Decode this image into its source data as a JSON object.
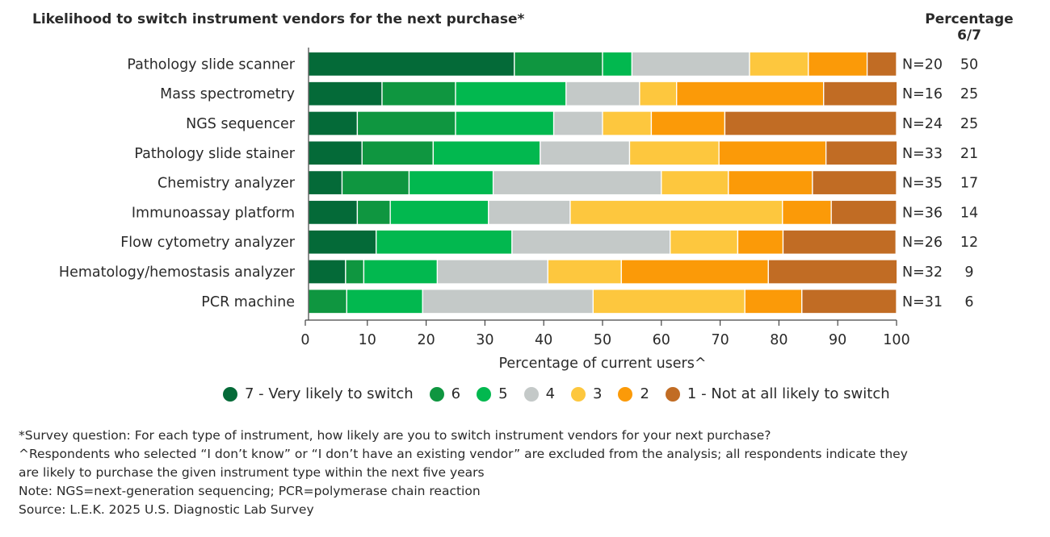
{
  "title": "Likelihood to switch instrument vendors for the next purchase*",
  "pct_header_line1": "Percentage",
  "pct_header_line2": "6/7",
  "chart_data": {
    "type": "bar",
    "orientation": "horizontal",
    "stacked": true,
    "categories": [
      "Pathology slide scanner",
      "Mass spectrometry",
      "NGS sequencer",
      "Pathology slide stainer",
      "Chemistry analyzer",
      "Immunoassay platform",
      "Flow cytometry analyzer",
      "Hematology/hemostasis analyzer",
      "PCR machine"
    ],
    "series": [
      {
        "name": "7 - Very likely to switch",
        "color": "#046a38",
        "values": [
          35,
          12.5,
          8.3,
          9.1,
          5.7,
          8.3,
          11.5,
          6.3,
          0
        ]
      },
      {
        "name": "6",
        "color": "#0f9640",
        "values": [
          15,
          12.5,
          16.7,
          12.1,
          11.4,
          5.6,
          0,
          3.1,
          6.5
        ]
      },
      {
        "name": "5",
        "color": "#02b84f",
        "values": [
          5,
          18.8,
          16.7,
          18.2,
          14.3,
          16.7,
          23.1,
          12.5,
          12.9
        ]
      },
      {
        "name": "4",
        "color": "#c4c9c8",
        "values": [
          20,
          12.5,
          8.3,
          15.2,
          28.6,
          13.9,
          26.9,
          18.8,
          29
        ]
      },
      {
        "name": "3",
        "color": "#fdc73e",
        "values": [
          10,
          6.3,
          8.3,
          15.2,
          11.4,
          36.1,
          11.5,
          12.5,
          25.8
        ]
      },
      {
        "name": "2",
        "color": "#fb9a08",
        "values": [
          10,
          25,
          12.5,
          18.2,
          14.3,
          8.3,
          7.7,
          25,
          9.7
        ]
      },
      {
        "name": "1 - Not at all likely to switch",
        "color": "#c16c24",
        "values": [
          5,
          12.5,
          29.2,
          12.1,
          14.3,
          11.1,
          19.2,
          21.9,
          16.1
        ]
      }
    ],
    "n_labels": [
      "N=20",
      "N=16",
      "N=24",
      "N=33",
      "N=35",
      "N=36",
      "N=26",
      "N=32",
      "N=31"
    ],
    "percentage_6_7": [
      "50",
      "25",
      "25",
      "21",
      "17",
      "14",
      "12",
      "9",
      "6"
    ],
    "xlabel": "Percentage of current users^",
    "xlim": [
      0,
      100
    ],
    "xticks": [
      "0",
      "10",
      "20",
      "30",
      "40",
      "50",
      "60",
      "70",
      "80",
      "90",
      "100"
    ],
    "legend_position": "bottom"
  },
  "legend": [
    {
      "label": "7 - Very likely to switch",
      "color": "#046a38"
    },
    {
      "label": "6",
      "color": "#0f9640"
    },
    {
      "label": "5",
      "color": "#02b84f"
    },
    {
      "label": "4",
      "color": "#c4c9c8"
    },
    {
      "label": "3",
      "color": "#fdc73e"
    },
    {
      "label": "2",
      "color": "#fb9a08"
    },
    {
      "label": "1 - Not at all likely to switch",
      "color": "#c16c24"
    }
  ],
  "footnotes": [
    "*Survey question: For each type of instrument, how likely are you to switch instrument vendors for your next purchase?",
    "^Respondents who selected “I don’t know” or “I don’t have an existing vendor” are excluded from the analysis; all respondents indicate they",
    "are likely to purchase the given instrument type within the next five years",
    "Note: NGS=next-generation sequencing; PCR=polymerase chain reaction",
    "Source: L.E.K. 2025 U.S. Diagnostic Lab Survey"
  ]
}
